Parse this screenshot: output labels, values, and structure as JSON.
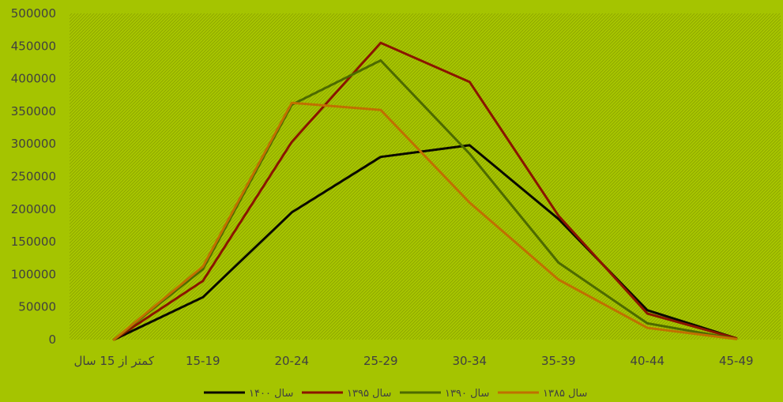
{
  "chart_data": {
    "type": "line",
    "title": "",
    "xlabel": "",
    "ylabel": "",
    "categories": [
      "کمتر از 15 سال",
      "15-19",
      "20-24",
      "25-29",
      "30-34",
      "35-39",
      "40-44",
      "45-49"
    ],
    "y_ticks": [
      "0",
      "50000",
      "100000",
      "150000",
      "200000",
      "250000",
      "300000",
      "350000",
      "400000",
      "450000",
      "500000"
    ],
    "ylim": [
      0,
      500000
    ],
    "grid": false,
    "legend_position": "bottom",
    "plot_background": "hatched green",
    "series": [
      {
        "name": "سال ۱۴۰۰",
        "color": "#0a0a00",
        "values": [
          0,
          65000,
          195000,
          280000,
          298000,
          185000,
          45000,
          2000
        ]
      },
      {
        "name": "سال ۱۳۹۵",
        "color": "#8a1500",
        "values": [
          0,
          90000,
          303000,
          455000,
          395000,
          190000,
          40000,
          2000
        ]
      },
      {
        "name": "سال ۱۳۹۰",
        "color": "#4d6a00",
        "values": [
          0,
          108000,
          360000,
          428000,
          285000,
          118000,
          25000,
          1000
        ]
      },
      {
        "name": "سال ۱۳۸۵",
        "color": "#c07000",
        "values": [
          0,
          112000,
          363000,
          352000,
          210000,
          92000,
          18000,
          1000
        ]
      }
    ]
  }
}
